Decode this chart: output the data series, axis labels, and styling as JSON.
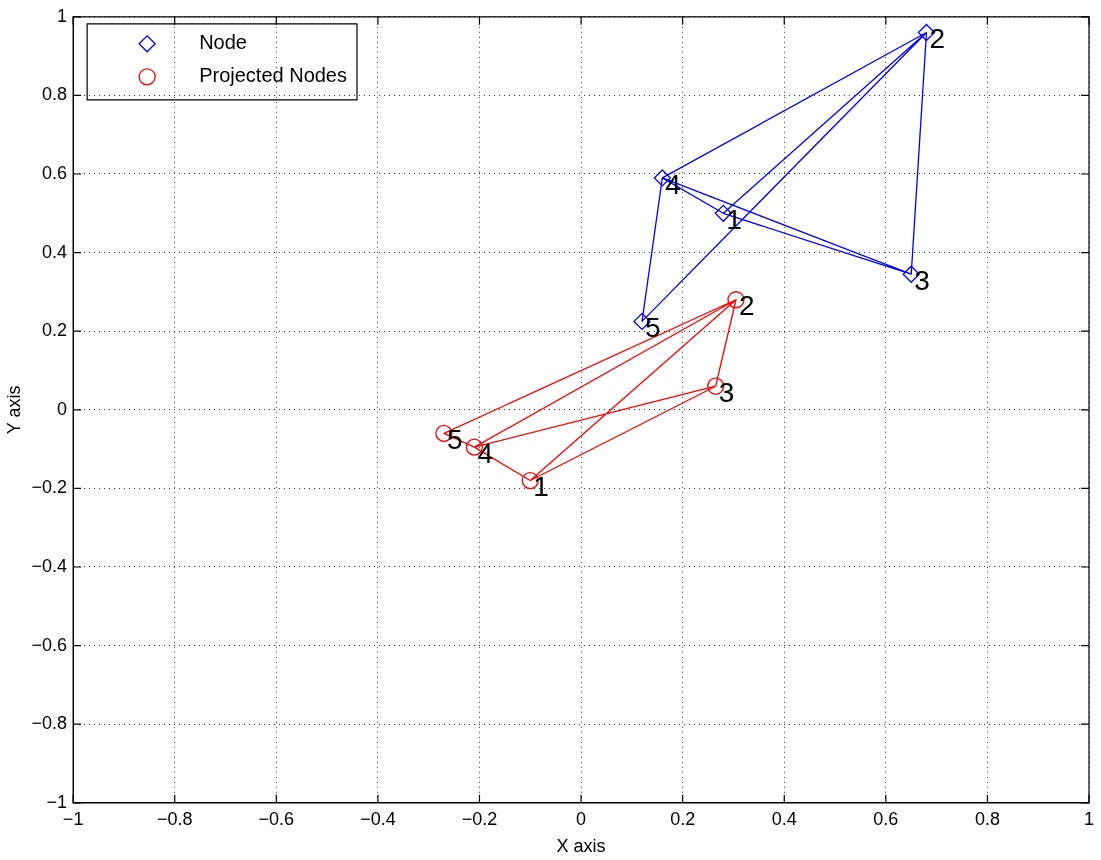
{
  "chart_data": {
    "type": "scatter",
    "xlabel": "X axis",
    "ylabel": "Y axis",
    "xlim": [
      -1,
      1
    ],
    "ylim": [
      -1,
      1
    ],
    "xticks": [
      -1,
      -0.8,
      -0.6,
      -0.4,
      -0.2,
      0,
      0.2,
      0.4,
      0.6,
      0.8,
      1
    ],
    "yticks": [
      -1,
      -0.8,
      -0.6,
      -0.4,
      -0.2,
      0,
      0.2,
      0.4,
      0.6,
      0.8,
      1
    ],
    "grid": true,
    "legend": "top left",
    "series": [
      {
        "name": "Node",
        "type": "scatter",
        "marker": "diamond",
        "color": "#0000ff",
        "x": [
          0.28,
          0.68,
          0.65,
          0.16,
          0.12
        ],
        "values": [
          0.5,
          0.96,
          0.345,
          0.59,
          0.225
        ]
      },
      {
        "type": "line",
        "marker": "none",
        "color": "#0000ff",
        "x": [
          0.28,
          0.68,
          0.12,
          0.16,
          0.68,
          0.65,
          0.16,
          0.28,
          0.65
        ],
        "values": [
          0.5,
          0.96,
          0.225,
          0.59,
          0.96,
          0.345,
          0.59,
          0.5,
          0.345
        ]
      },
      {
        "name": "Projected Nodes",
        "type": "scatter",
        "marker": "circle",
        "color": "#ff0000",
        "x": [
          -0.1,
          0.305,
          0.265,
          -0.21,
          -0.27
        ],
        "values": [
          -0.18,
          0.28,
          0.06,
          -0.095,
          -0.06
        ]
      },
      {
        "type": "line",
        "marker": "none",
        "color": "#ff0000",
        "x": [
          -0.1,
          0.305,
          -0.27,
          -0.21,
          0.305,
          0.265,
          -0.21,
          -0.1,
          0.265
        ],
        "values": [
          -0.18,
          0.28,
          -0.06,
          -0.095,
          0.28,
          0.06,
          -0.095,
          -0.18,
          0.06
        ]
      }
    ],
    "annotations": [
      {
        "text": "1",
        "x": 0.28,
        "y": 0.5
      },
      {
        "text": "2",
        "x": 0.68,
        "y": 0.96
      },
      {
        "text": "3",
        "x": 0.65,
        "y": 0.345
      },
      {
        "text": "4",
        "x": 0.16,
        "y": 0.59
      },
      {
        "text": "5",
        "x": 0.12,
        "y": 0.225
      },
      {
        "text": "1",
        "x": -0.1,
        "y": -0.18
      },
      {
        "text": "2",
        "x": 0.305,
        "y": 0.28
      },
      {
        "text": "3",
        "x": 0.265,
        "y": 0.06
      },
      {
        "text": "4",
        "x": -0.21,
        "y": -0.095
      },
      {
        "text": "5",
        "x": -0.27,
        "y": -0.06
      }
    ]
  }
}
